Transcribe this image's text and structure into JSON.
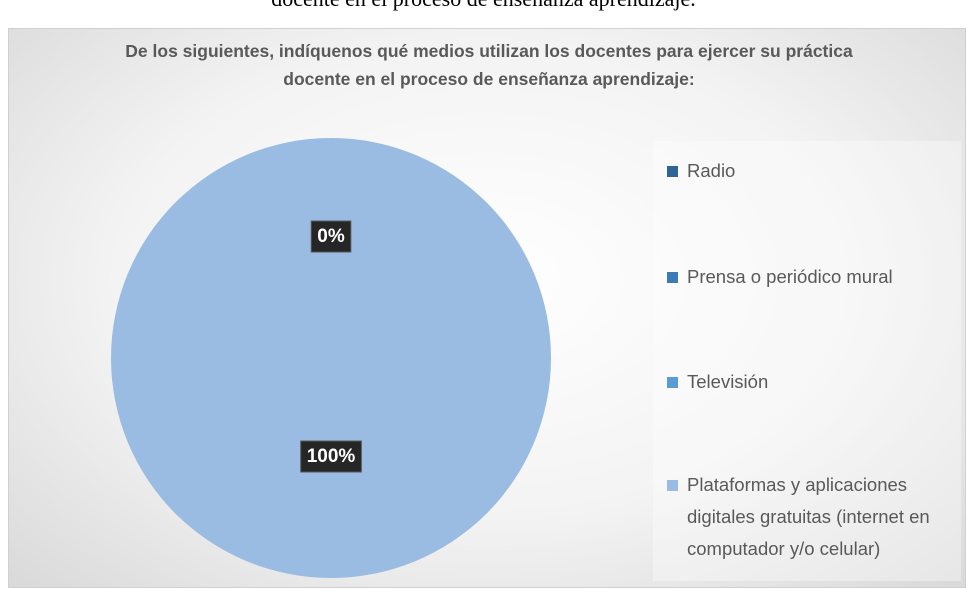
{
  "header": {
    "text": "docente en el proceso de enseñanza aprendizaje."
  },
  "chart_data": {
    "type": "pie",
    "title": "De los siguientes, indíquenos qué medios utilizan los docentes para ejercer su práctica docente en el proceso de enseñanza aprendizaje:",
    "categories": [
      "Radio",
      "Prensa o periódico mural",
      "Televisión",
      "Plataformas y aplicaciones digitales gratuitas (internet en computador y/o celular)"
    ],
    "values": [
      0,
      0,
      0,
      100
    ],
    "value_labels": [
      "0%",
      null,
      null,
      "100%"
    ],
    "colors": [
      "#2f6497",
      "#3c7ab8",
      "#5b9bd5",
      "#9bbce2"
    ],
    "legend": "right"
  }
}
